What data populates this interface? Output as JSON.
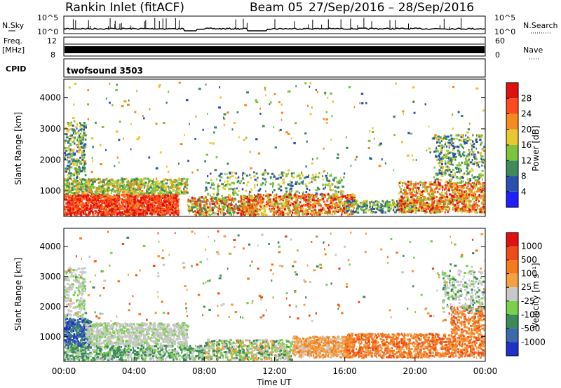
{
  "header": {
    "station": "Rankin Inlet (fitACF)",
    "beam": "Beam 05",
    "date_range": "27/Sep/2016 – 28/Sep/2016"
  },
  "noise_panel": {
    "left_label": "N.Sky",
    "right_label": "N.Search",
    "left_ticks": [
      "10^5",
      "10^0"
    ],
    "right_ticks": [
      "10^5",
      "10^0"
    ]
  },
  "freq_panel": {
    "left_label_1": "Freq.",
    "left_label_2": "[MHz]",
    "left_ticks": [
      "12",
      "8"
    ],
    "right_label": "Nave",
    "right_ticks": [
      "60",
      "0"
    ]
  },
  "cpid_panel": {
    "label": "CPID",
    "program": "twofsound 3503"
  },
  "chart_data": [
    {
      "type": "heatmap",
      "title": "",
      "xlabel": "",
      "ylabel": "Slant Range [km]",
      "yticks": [
        1000,
        2000,
        3000,
        4000
      ],
      "ylim": [
        180,
        4600
      ],
      "xlim": [
        0,
        24
      ],
      "colorbar": {
        "label": "Power [dB]",
        "ticks": [
          "4",
          "8",
          "12",
          "16",
          "20",
          "24",
          "28"
        ],
        "colors": [
          "#1f1fff",
          "#2a4fb0",
          "#3d8a5a",
          "#7cc43c",
          "#e8c830",
          "#f58a1e",
          "#ff4a1e",
          "#e01010"
        ]
      }
    },
    {
      "type": "heatmap",
      "title": "",
      "xlabel": "Time UT",
      "ylabel": "Slant Range [km]",
      "yticks": [
        1000,
        2000,
        3000,
        4000
      ],
      "ylim": [
        180,
        4600
      ],
      "xlim": [
        0,
        24
      ],
      "xticks": [
        "00:00",
        "04:00",
        "08:00",
        "12:00",
        "16:00",
        "20:00",
        "00:00"
      ],
      "colorbar": {
        "label": "Velocity [m s⁻¹]",
        "ticks": [
          "1000",
          "500",
          "100",
          "25",
          "-25",
          "-100",
          "-500",
          "-1000"
        ],
        "colors": [
          "#2030c8",
          "#3a6aa8",
          "#3a8a5a",
          "#7ad04a",
          "#c8c8c8",
          "#f5a040",
          "#f57a1e",
          "#f04a1a",
          "#e01010"
        ]
      }
    }
  ]
}
